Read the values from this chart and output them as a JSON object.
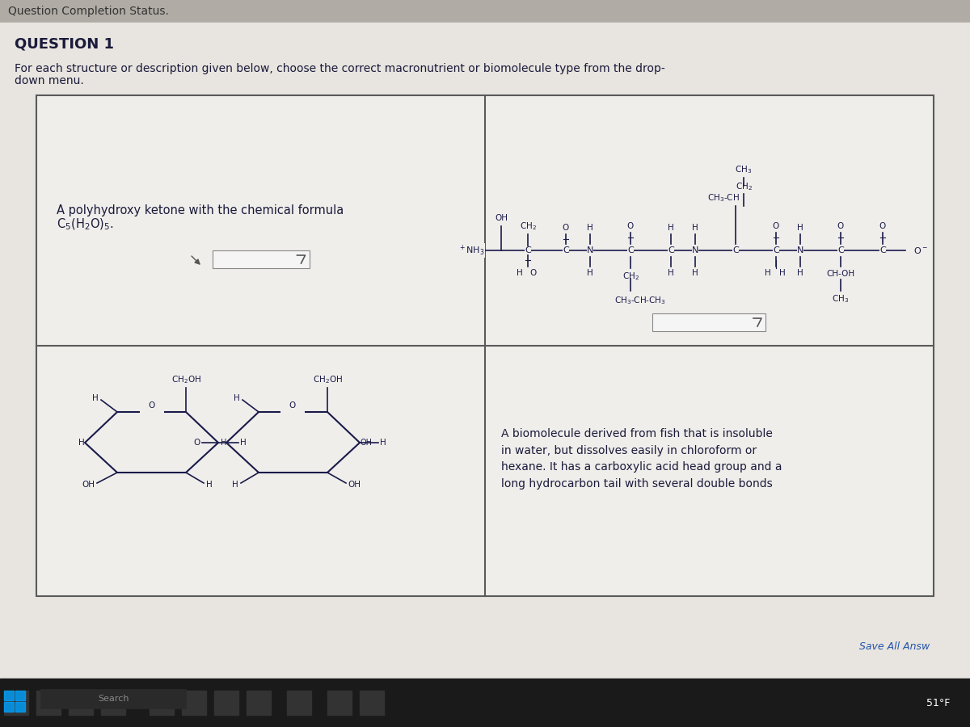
{
  "bg_color": "#d4d0cb",
  "page_bg": "#e8e4df",
  "white_box": "#f0eeeb",
  "border_color": "#5a5a5a",
  "text_color": "#1a1a3a",
  "title_bar_bg": "#e0ddd8",
  "question_title": "QUESTION 1",
  "question_text": "For each structure or description given below, choose the correct macronutrient or biomolecule type from the drop-\ndown menu.",
  "cell1_text": "A polyhydroxy ketone with the chemical formula\nC₅(H₂O)₅.",
  "cell3_text": "A biomolecule derived from fish that is insoluble\nin water, but dissolves easily in chloroform or\nhexane. It has a carboxylic acid head group and a\nlong hydrocarbon tail with several double bonds",
  "dropdown_symbol": "∨",
  "save_text": "Save All Answ",
  "temp_text": "51°F",
  "chem_color": "#1a1a4a"
}
